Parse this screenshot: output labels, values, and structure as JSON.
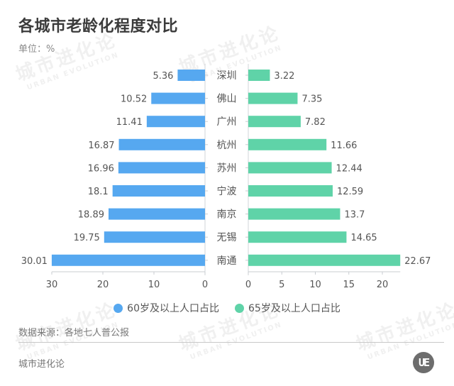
{
  "header": {
    "title": "各城市老龄化程度对比",
    "unit": "单位：%"
  },
  "watermark": {
    "cn": "城市进化论",
    "en": "URBAN EVOLUTION"
  },
  "legend": [
    {
      "label": "60岁及以上人口占比",
      "color": "#56a8f0"
    },
    {
      "label": "65岁及以上人口占比",
      "color": "#5fd3a8"
    }
  ],
  "footer": {
    "source": "数据来源：各地七人普公报",
    "brand": "城市进化论",
    "logo_text": "UE"
  },
  "chart_data": {
    "type": "bar",
    "orientation": "horizontal-butterfly",
    "title": "各城市老龄化程度对比",
    "unit": "%",
    "categories": [
      "深圳",
      "佛山",
      "广州",
      "杭州",
      "苏州",
      "宁波",
      "南京",
      "无锡",
      "南通"
    ],
    "series": [
      {
        "name": "60岁及以上人口占比",
        "color": "#56a8f0",
        "side": "left",
        "values": [
          5.36,
          10.52,
          11.41,
          16.87,
          16.96,
          18.1,
          18.89,
          19.75,
          30.01
        ],
        "labels": [
          "5.36",
          "10.52",
          "11.41",
          "16.87",
          "16.96",
          "18.1",
          "18.89",
          "19.75",
          "30.01"
        ]
      },
      {
        "name": "65岁及以上人口占比",
        "color": "#5fd3a8",
        "side": "right",
        "values": [
          3.22,
          7.35,
          7.82,
          11.66,
          12.44,
          12.59,
          13.7,
          14.65,
          22.67
        ],
        "labels": [
          "3.22",
          "7.35",
          "7.82",
          "11.66",
          "12.44",
          "12.59",
          "13.7",
          "14.65",
          "22.67"
        ]
      }
    ],
    "left_axis": {
      "ticks": [
        30,
        20,
        10,
        0
      ],
      "tick_labels": [
        "30",
        "20",
        "10",
        "0"
      ],
      "range": [
        0,
        30
      ]
    },
    "right_axis": {
      "ticks": [
        0,
        5,
        10,
        15,
        20
      ],
      "tick_labels": [
        "0",
        "5",
        "10",
        "15",
        "20"
      ],
      "range": [
        0,
        22.67
      ]
    },
    "legend_position": "bottom",
    "grid": false
  }
}
